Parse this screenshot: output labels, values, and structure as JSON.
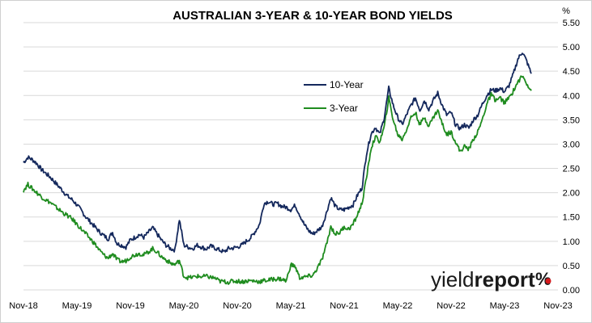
{
  "chart_data": {
    "type": "line",
    "title": "AUSTRALIAN 3-YEAR & 10-YEAR BOND YIELDS",
    "ylabel": "%",
    "ylim": [
      0,
      5.5
    ],
    "y_ticks": [
      "0.00",
      "0.50",
      "1.00",
      "1.50",
      "2.00",
      "2.50",
      "3.00",
      "3.50",
      "4.00",
      "4.50",
      "5.00",
      "5.50"
    ],
    "x_ticks": [
      "Nov-18",
      "May-19",
      "Nov-19",
      "May-20",
      "Nov-20",
      "May-21",
      "Nov-21",
      "May-22",
      "Nov-22",
      "May-23",
      "Nov-23"
    ],
    "grid": "horizontal",
    "legend_position": "top-center",
    "series": [
      {
        "name": "10-Year",
        "color": "#14285c",
        "values": [
          [
            0,
            2.62
          ],
          [
            0.25,
            2.73
          ],
          [
            0.5,
            2.68
          ],
          [
            0.75,
            2.6
          ],
          [
            1,
            2.48
          ],
          [
            1.25,
            2.4
          ],
          [
            1.5,
            2.32
          ],
          [
            1.75,
            2.22
          ],
          [
            2,
            2.12
          ],
          [
            2.25,
            2.02
          ],
          [
            2.5,
            1.92
          ],
          [
            2.75,
            1.85
          ],
          [
            3,
            1.75
          ],
          [
            3.25,
            1.63
          ],
          [
            3.5,
            1.5
          ],
          [
            3.75,
            1.4
          ],
          [
            4,
            1.3
          ],
          [
            4.25,
            1.2
          ],
          [
            4.5,
            1.12
          ],
          [
            4.75,
            1.05
          ],
          [
            5,
            1.18
          ],
          [
            5.25,
            0.95
          ],
          [
            5.5,
            0.92
          ],
          [
            5.75,
            0.88
          ],
          [
            6,
            1.03
          ],
          [
            6.25,
            1.08
          ],
          [
            6.5,
            1.14
          ],
          [
            6.75,
            1.08
          ],
          [
            7,
            1.18
          ],
          [
            7.25,
            1.28
          ],
          [
            7.5,
            1.15
          ],
          [
            7.75,
            1.02
          ],
          [
            8,
            0.92
          ],
          [
            8.25,
            0.85
          ],
          [
            8.5,
            0.82
          ],
          [
            8.75,
            1.45
          ],
          [
            9,
            0.92
          ],
          [
            9.25,
            0.88
          ],
          [
            9.5,
            0.85
          ],
          [
            9.75,
            0.92
          ],
          [
            10,
            0.88
          ],
          [
            10.25,
            0.84
          ],
          [
            10.5,
            0.9
          ],
          [
            10.75,
            0.86
          ],
          [
            11,
            0.82
          ],
          [
            11.25,
            0.78
          ],
          [
            11.5,
            0.85
          ],
          [
            11.75,
            0.86
          ],
          [
            12,
            0.88
          ],
          [
            12.25,
            0.92
          ],
          [
            12.5,
            1.0
          ],
          [
            12.75,
            1.07
          ],
          [
            13,
            1.2
          ],
          [
            13.25,
            1.35
          ],
          [
            13.5,
            1.78
          ],
          [
            13.75,
            1.82
          ],
          [
            14,
            1.76
          ],
          [
            14.25,
            1.78
          ],
          [
            14.5,
            1.72
          ],
          [
            14.75,
            1.7
          ],
          [
            15,
            1.65
          ],
          [
            15.25,
            1.74
          ],
          [
            15.5,
            1.55
          ],
          [
            15.75,
            1.35
          ],
          [
            16,
            1.22
          ],
          [
            16.25,
            1.15
          ],
          [
            16.5,
            1.22
          ],
          [
            16.75,
            1.3
          ],
          [
            17,
            1.58
          ],
          [
            17.25,
            1.9
          ],
          [
            17.5,
            1.72
          ],
          [
            17.75,
            1.65
          ],
          [
            18,
            1.65
          ],
          [
            18.25,
            1.7
          ],
          [
            18.5,
            1.75
          ],
          [
            18.75,
            1.95
          ],
          [
            19,
            2.1
          ],
          [
            19.25,
            2.8
          ],
          [
            19.5,
            3.2
          ],
          [
            19.75,
            3.35
          ],
          [
            20,
            3.2
          ],
          [
            20.25,
            3.55
          ],
          [
            20.5,
            4.15
          ],
          [
            20.75,
            3.8
          ],
          [
            21,
            3.55
          ],
          [
            21.25,
            3.4
          ],
          [
            21.5,
            3.6
          ],
          [
            21.75,
            3.8
          ],
          [
            22,
            3.95
          ],
          [
            22.25,
            3.7
          ],
          [
            22.5,
            3.9
          ],
          [
            22.75,
            3.72
          ],
          [
            23,
            3.9
          ],
          [
            23.25,
            4.05
          ],
          [
            23.5,
            3.8
          ],
          [
            23.75,
            3.6
          ],
          [
            24,
            3.65
          ],
          [
            24.25,
            3.4
          ],
          [
            24.5,
            3.32
          ],
          [
            24.75,
            3.4
          ],
          [
            25,
            3.33
          ],
          [
            25.25,
            3.5
          ],
          [
            25.5,
            3.6
          ],
          [
            25.75,
            3.82
          ],
          [
            26,
            4.0
          ],
          [
            26.25,
            4.12
          ],
          [
            26.5,
            4.1
          ],
          [
            26.75,
            4.15
          ],
          [
            27,
            4.08
          ],
          [
            27.25,
            4.2
          ],
          [
            27.5,
            4.45
          ],
          [
            27.75,
            4.75
          ],
          [
            28,
            4.9
          ],
          [
            28.25,
            4.7
          ],
          [
            28.5,
            4.45
          ]
        ]
      },
      {
        "name": "3-Year",
        "color": "#1f8c1f",
        "values": [
          [
            0,
            2.05
          ],
          [
            0.25,
            2.17
          ],
          [
            0.5,
            2.08
          ],
          [
            0.75,
            2.0
          ],
          [
            1,
            1.92
          ],
          [
            1.25,
            1.85
          ],
          [
            1.5,
            1.8
          ],
          [
            1.75,
            1.72
          ],
          [
            2,
            1.65
          ],
          [
            2.25,
            1.58
          ],
          [
            2.5,
            1.52
          ],
          [
            2.75,
            1.45
          ],
          [
            3,
            1.35
          ],
          [
            3.25,
            1.25
          ],
          [
            3.5,
            1.15
          ],
          [
            3.75,
            1.05
          ],
          [
            4,
            0.95
          ],
          [
            4.25,
            0.82
          ],
          [
            4.5,
            0.72
          ],
          [
            4.75,
            0.65
          ],
          [
            5,
            0.75
          ],
          [
            5.25,
            0.62
          ],
          [
            5.5,
            0.58
          ],
          [
            5.75,
            0.6
          ],
          [
            6,
            0.68
          ],
          [
            6.25,
            0.72
          ],
          [
            6.5,
            0.75
          ],
          [
            6.75,
            0.72
          ],
          [
            7,
            0.78
          ],
          [
            7.25,
            0.85
          ],
          [
            7.5,
            0.78
          ],
          [
            7.75,
            0.68
          ],
          [
            8,
            0.62
          ],
          [
            8.25,
            0.55
          ],
          [
            8.5,
            0.52
          ],
          [
            8.75,
            0.6
          ],
          [
            9,
            0.28
          ],
          [
            9.25,
            0.25
          ],
          [
            9.5,
            0.26
          ],
          [
            9.75,
            0.28
          ],
          [
            10,
            0.27
          ],
          [
            10.25,
            0.28
          ],
          [
            10.5,
            0.26
          ],
          [
            10.75,
            0.24
          ],
          [
            11,
            0.18
          ],
          [
            11.25,
            0.17
          ],
          [
            11.5,
            0.16
          ],
          [
            11.75,
            0.18
          ],
          [
            12,
            0.18
          ],
          [
            12.25,
            0.17
          ],
          [
            12.5,
            0.18
          ],
          [
            12.75,
            0.19
          ],
          [
            13,
            0.18
          ],
          [
            13.25,
            0.17
          ],
          [
            13.5,
            0.19
          ],
          [
            13.75,
            0.2
          ],
          [
            14,
            0.22
          ],
          [
            14.25,
            0.23
          ],
          [
            14.5,
            0.22
          ],
          [
            14.75,
            0.18
          ],
          [
            15,
            0.52
          ],
          [
            15.25,
            0.48
          ],
          [
            15.5,
            0.25
          ],
          [
            15.75,
            0.26
          ],
          [
            16,
            0.28
          ],
          [
            16.25,
            0.3
          ],
          [
            16.5,
            0.45
          ],
          [
            16.75,
            0.62
          ],
          [
            17,
            0.92
          ],
          [
            17.25,
            1.3
          ],
          [
            17.5,
            1.15
          ],
          [
            17.75,
            1.18
          ],
          [
            18,
            1.3
          ],
          [
            18.25,
            1.25
          ],
          [
            18.5,
            1.35
          ],
          [
            18.75,
            1.55
          ],
          [
            19,
            1.78
          ],
          [
            19.25,
            2.3
          ],
          [
            19.5,
            2.9
          ],
          [
            19.75,
            3.15
          ],
          [
            20,
            3.05
          ],
          [
            20.25,
            3.35
          ],
          [
            20.5,
            3.95
          ],
          [
            20.75,
            3.5
          ],
          [
            21,
            3.2
          ],
          [
            21.25,
            3.1
          ],
          [
            21.5,
            3.3
          ],
          [
            21.75,
            3.55
          ],
          [
            22,
            3.65
          ],
          [
            22.25,
            3.4
          ],
          [
            22.5,
            3.55
          ],
          [
            22.75,
            3.38
          ],
          [
            23,
            3.55
          ],
          [
            23.25,
            3.7
          ],
          [
            23.5,
            3.42
          ],
          [
            23.75,
            3.2
          ],
          [
            24,
            3.25
          ],
          [
            24.25,
            3.05
          ],
          [
            24.5,
            2.85
          ],
          [
            24.75,
            2.95
          ],
          [
            25,
            2.9
          ],
          [
            25.25,
            3.1
          ],
          [
            25.5,
            3.25
          ],
          [
            25.75,
            3.5
          ],
          [
            26,
            3.82
          ],
          [
            26.25,
            4.02
          ],
          [
            26.5,
            3.9
          ],
          [
            26.75,
            3.95
          ],
          [
            27,
            3.85
          ],
          [
            27.25,
            3.95
          ],
          [
            27.5,
            4.1
          ],
          [
            27.75,
            4.28
          ],
          [
            28,
            4.4
          ],
          [
            28.25,
            4.25
          ],
          [
            28.5,
            4.1
          ]
        ]
      }
    ]
  },
  "logo": {
    "text_light": "yield",
    "text_bold": "report",
    "symbol": "%"
  }
}
